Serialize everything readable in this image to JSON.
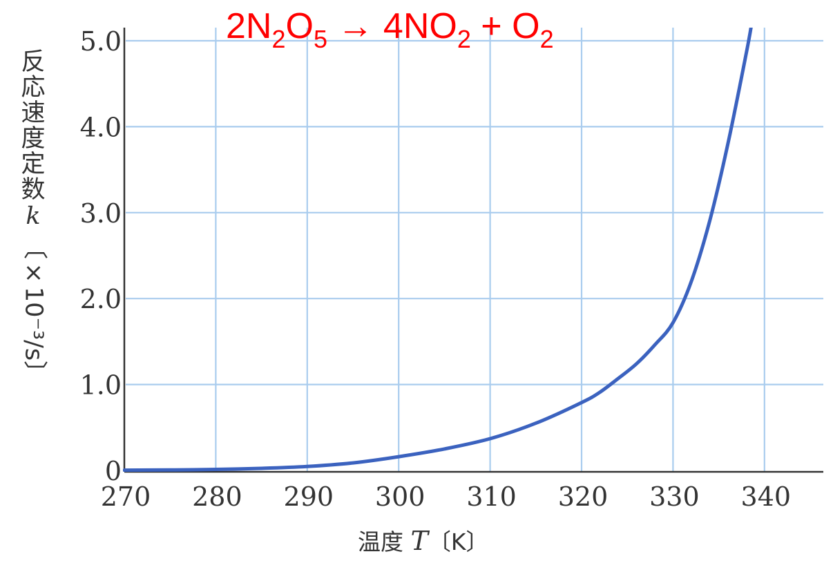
{
  "chart_data": {
    "type": "line",
    "title_parts": {
      "p1": "2N",
      "s1": "2",
      "p2": "O",
      "s2": "5",
      "p3": " → 4NO",
      "s3": "2",
      "p4": " + O",
      "s4": "2"
    },
    "xlabel": {
      "prefix": "温度 ",
      "var": "T",
      "unit": "〔K〕"
    },
    "ylabel": {
      "chars": [
        "反",
        "応",
        "速",
        "度",
        "定",
        "数"
      ],
      "var": "k",
      "unit": "〔×10⁻³/s〕"
    },
    "xlim": [
      270,
      347
    ],
    "ylim": [
      0,
      5.0
    ],
    "xticks": [
      {
        "v": 270,
        "label": "270"
      },
      {
        "v": 280,
        "label": "280"
      },
      {
        "v": 290,
        "label": "290"
      },
      {
        "v": 300,
        "label": "300"
      },
      {
        "v": 310,
        "label": "310"
      },
      {
        "v": 320,
        "label": "320"
      },
      {
        "v": 330,
        "label": "330"
      },
      {
        "v": 340,
        "label": "340"
      }
    ],
    "yticks": [
      {
        "v": 0,
        "label": "0"
      },
      {
        "v": 1.0,
        "label": "1.0"
      },
      {
        "v": 2.0,
        "label": "2.0"
      },
      {
        "v": 3.0,
        "label": "3.0"
      },
      {
        "v": 4.0,
        "label": "4.0"
      },
      {
        "v": 5.0,
        "label": "5.0"
      }
    ],
    "grid": true,
    "series": [
      {
        "x": [
          270,
          275,
          280,
          285,
          290,
          295,
          300,
          305,
          310,
          315,
          320,
          322,
          324,
          326,
          328,
          330,
          332,
          334,
          336,
          338,
          338.6
        ],
        "y": [
          0.003,
          0.006,
          0.012,
          0.024,
          0.046,
          0.088,
          0.16,
          0.25,
          0.37,
          0.55,
          0.79,
          0.91,
          1.07,
          1.24,
          1.46,
          1.72,
          2.2,
          2.9,
          3.8,
          4.85,
          5.2
        ]
      }
    ],
    "colors": {
      "line": "#3b62bf",
      "grid": "#a9ccee",
      "axis": "#333333",
      "title": "#ff0000"
    }
  }
}
